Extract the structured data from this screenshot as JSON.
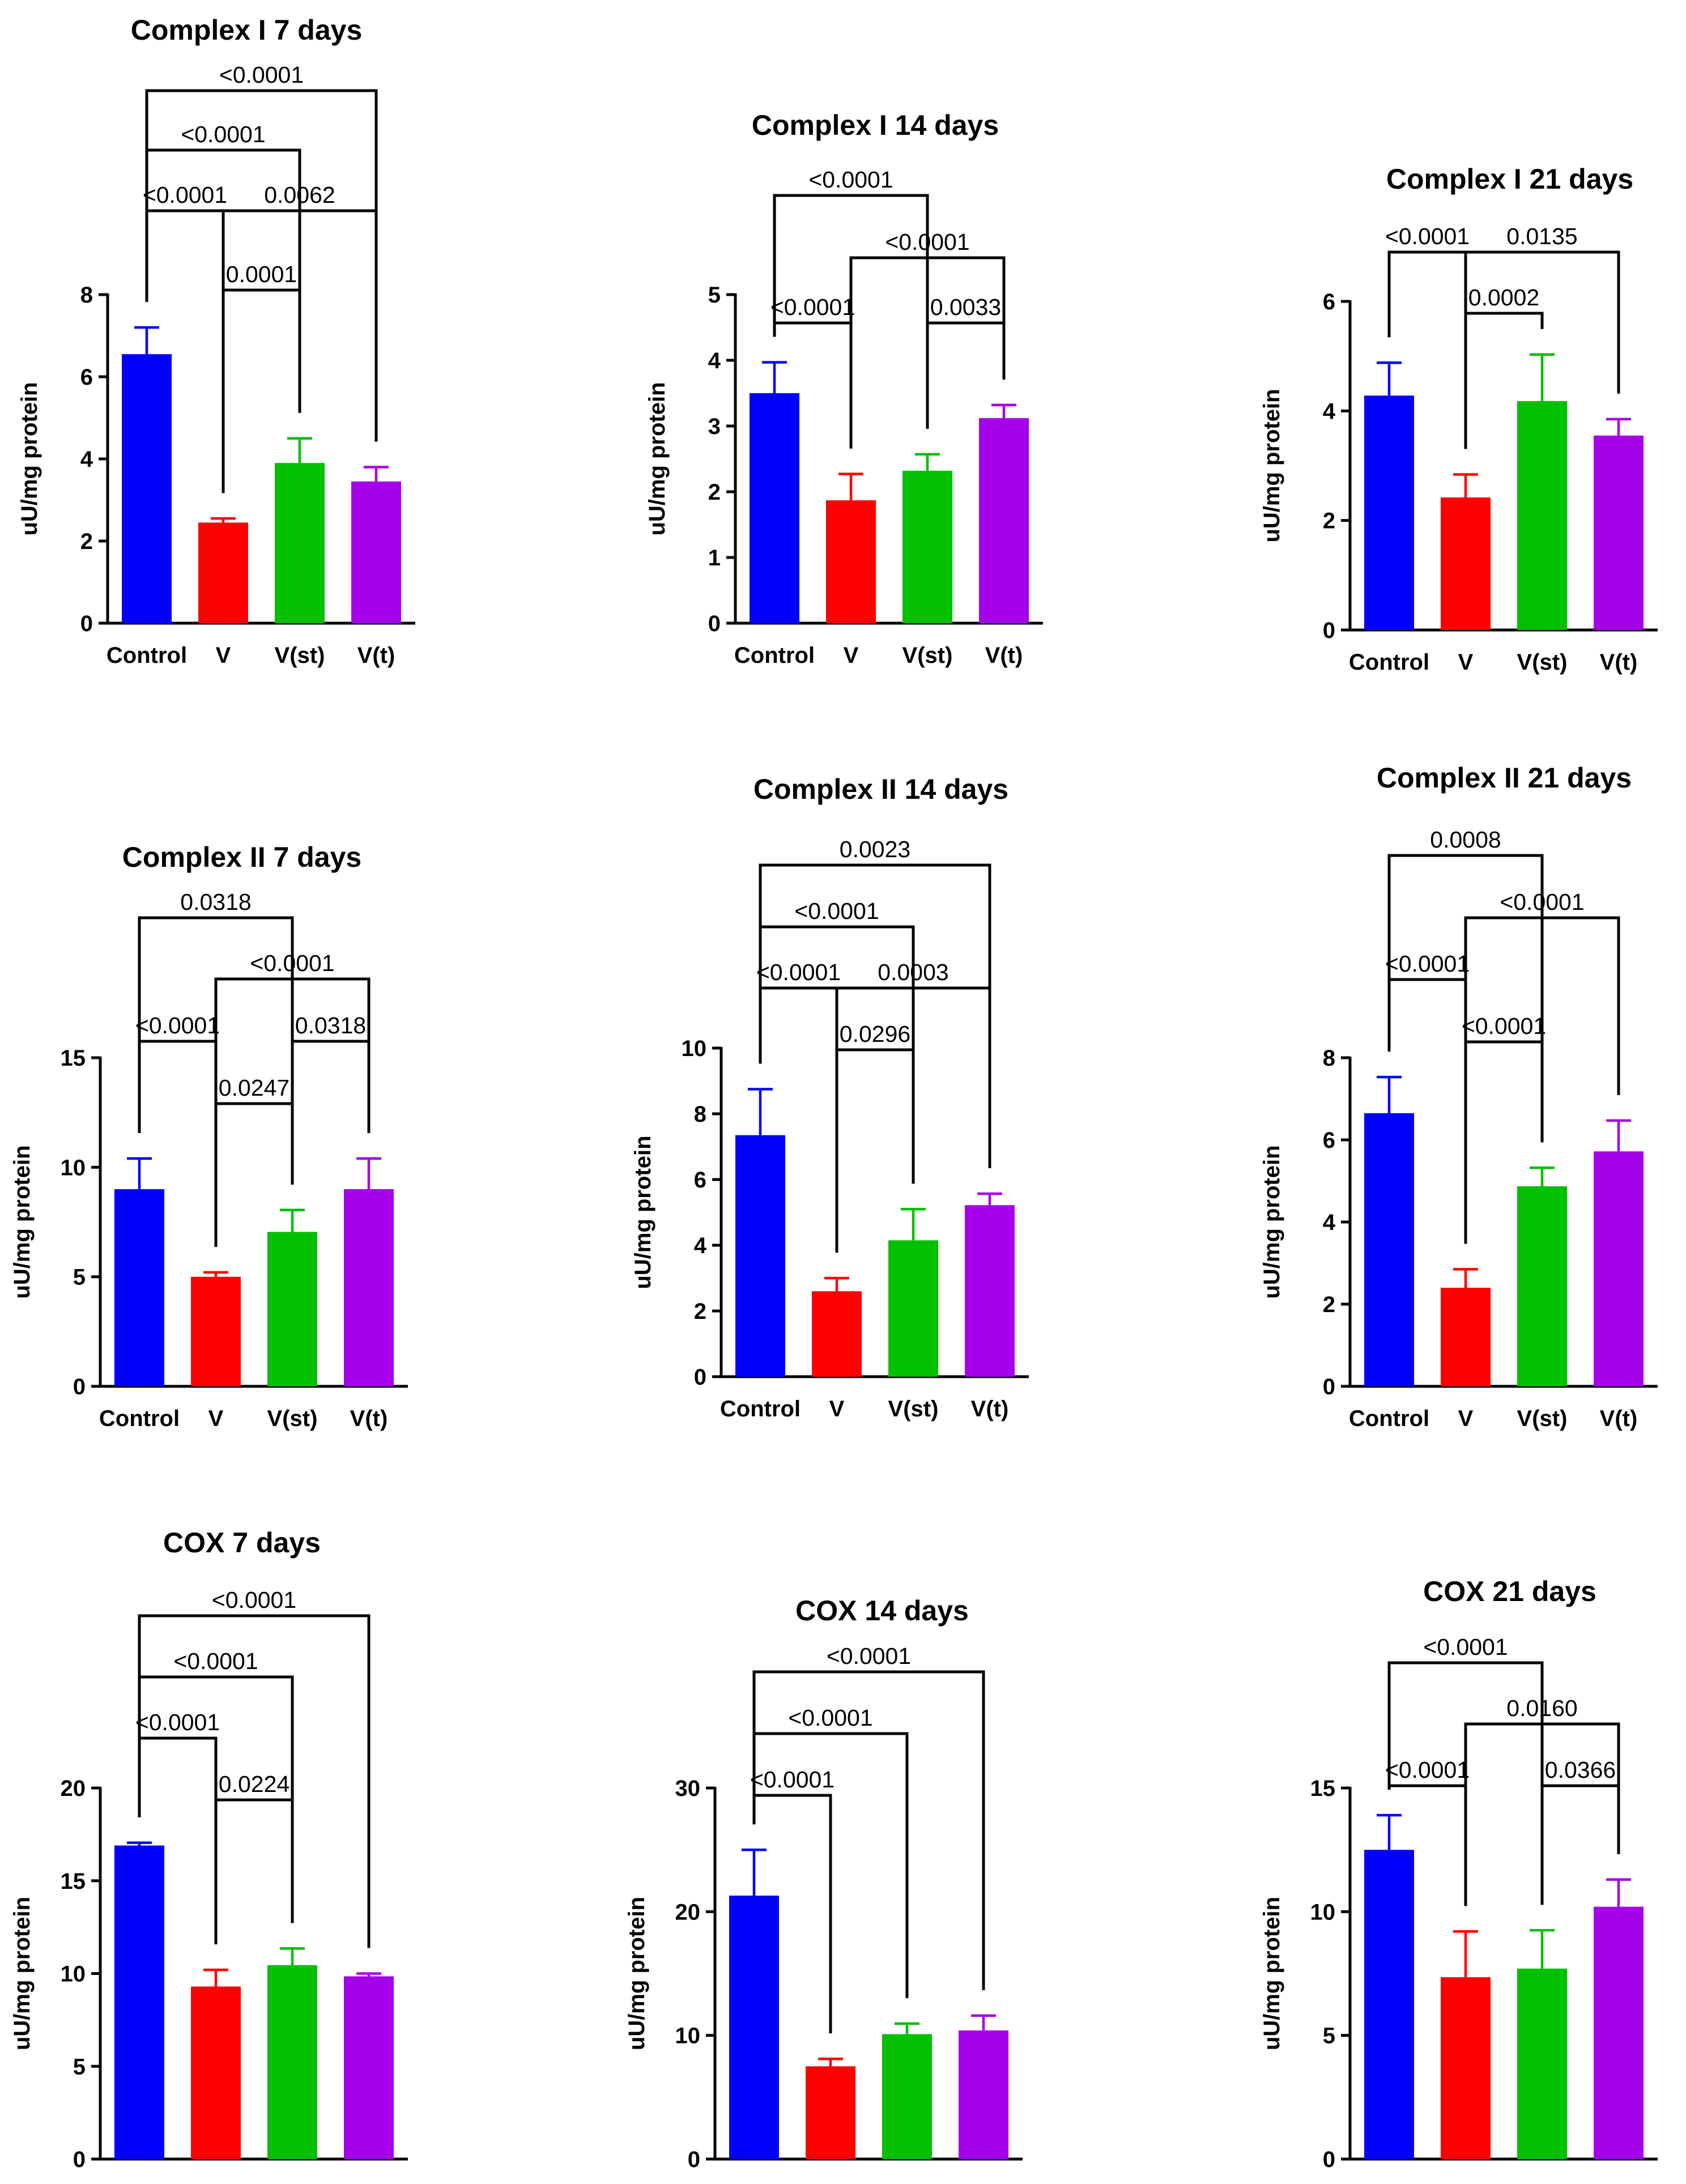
{
  "colors": {
    "Control": "#0000ff",
    "V": "#ff0000",
    "V(st)": "#00c000",
    "V(t)": "#a600ea"
  },
  "chart_data": [
    {
      "id": "c1i7",
      "type": "bar",
      "title": "Complex I 7 days",
      "ylabel": "uU/mg protein",
      "categories": [
        "Control",
        "V",
        "V(st)",
        "V(t)"
      ],
      "values": [
        6.55,
        2.45,
        3.9,
        3.45
      ],
      "errors": [
        0.65,
        0.1,
        0.6,
        0.35
      ],
      "ylim": [
        0,
        8
      ],
      "yticks": [
        0,
        2,
        4,
        6,
        8
      ],
      "comparisons": [
        {
          "a": 0,
          "b": 3,
          "p": "<0.0001"
        },
        {
          "a": 0,
          "b": 2,
          "p": "<0.0001"
        },
        {
          "a": 0,
          "b": 1,
          "p": "<0.0001"
        },
        {
          "a": 1,
          "b": 3,
          "p": "0.0062"
        },
        {
          "a": 1,
          "b": 2,
          "p": "0.0001"
        }
      ]
    },
    {
      "id": "c1i14",
      "type": "bar",
      "title": "Complex I 14 days",
      "ylabel": "uU/mg protein",
      "categories": [
        "Control",
        "V",
        "V(st)",
        "V(t)"
      ],
      "values": [
        3.5,
        1.87,
        2.32,
        3.12
      ],
      "errors": [
        0.47,
        0.4,
        0.25,
        0.2
      ],
      "ylim": [
        0,
        5
      ],
      "yticks": [
        0,
        1,
        2,
        3,
        4,
        5
      ],
      "comparisons": [
        {
          "a": 0,
          "b": 2,
          "p": "<0.0001"
        },
        {
          "a": 1,
          "b": 3,
          "p": "<0.0001"
        },
        {
          "a": 0,
          "b": 1,
          "p": "<0.0001"
        },
        {
          "a": 2,
          "b": 3,
          "p": "0.0033"
        }
      ]
    },
    {
      "id": "c1i21",
      "type": "bar",
      "title": "Complex I 21 days",
      "ylabel": "uU/mg protein",
      "categories": [
        "Control",
        "V",
        "V(st)",
        "V(t)"
      ],
      "values": [
        4.28,
        2.42,
        4.18,
        3.55
      ],
      "errors": [
        0.6,
        0.42,
        0.85,
        0.3
      ],
      "ylim": [
        0,
        6
      ],
      "yticks": [
        0,
        2,
        4,
        6
      ],
      "comparisons": [
        {
          "a": 0,
          "b": 1,
          "p": "<0.0001"
        },
        {
          "a": 1,
          "b": 3,
          "p": "0.0135"
        },
        {
          "a": 1,
          "b": 2,
          "p": "0.0002"
        }
      ]
    },
    {
      "id": "c2i7",
      "type": "bar",
      "title": "Complex II 7 days",
      "ylabel": "uU/mg protein",
      "categories": [
        "Control",
        "V",
        "V(st)",
        "V(t)"
      ],
      "values": [
        9.0,
        5.0,
        7.05,
        9.0
      ],
      "errors": [
        1.4,
        0.2,
        1.0,
        1.4
      ],
      "ylim": [
        0,
        15
      ],
      "yticks": [
        0,
        5,
        10,
        15
      ],
      "comparisons": [
        {
          "a": 0,
          "b": 2,
          "p": "0.0318"
        },
        {
          "a": 1,
          "b": 3,
          "p": "<0.0001"
        },
        {
          "a": 0,
          "b": 1,
          "p": "<0.0001"
        },
        {
          "a": 2,
          "b": 3,
          "p": "0.0318"
        },
        {
          "a": 1,
          "b": 2,
          "p": "0.0247"
        }
      ]
    },
    {
      "id": "c2i14",
      "type": "bar",
      "title": "Complex II 14 days",
      "ylabel": "uU/mg protein",
      "categories": [
        "Control",
        "V",
        "V(st)",
        "V(t)"
      ],
      "values": [
        7.35,
        2.6,
        4.15,
        5.22
      ],
      "errors": [
        1.4,
        0.4,
        0.95,
        0.35
      ],
      "ylim": [
        0,
        10
      ],
      "yticks": [
        0,
        2,
        4,
        6,
        8,
        10
      ],
      "comparisons": [
        {
          "a": 0,
          "b": 3,
          "p": "0.0023"
        },
        {
          "a": 0,
          "b": 2,
          "p": "<0.0001"
        },
        {
          "a": 0,
          "b": 1,
          "p": "<0.0001"
        },
        {
          "a": 1,
          "b": 3,
          "p": "0.0003"
        },
        {
          "a": 1,
          "b": 2,
          "p": "0.0296"
        }
      ]
    },
    {
      "id": "c2i21",
      "type": "bar",
      "title": "Complex II 21 days",
      "ylabel": "uU/mg protein",
      "categories": [
        "Control",
        "V",
        "V(st)",
        "V(t)"
      ],
      "values": [
        6.65,
        2.4,
        4.87,
        5.72
      ],
      "errors": [
        0.88,
        0.45,
        0.45,
        0.75
      ],
      "ylim": [
        0,
        8
      ],
      "yticks": [
        0,
        2,
        4,
        6,
        8
      ],
      "comparisons": [
        {
          "a": 0,
          "b": 2,
          "p": "0.0008"
        },
        {
          "a": 1,
          "b": 3,
          "p": "<0.0001"
        },
        {
          "a": 0,
          "b": 1,
          "p": "<0.0001"
        },
        {
          "a": 1,
          "b": 2,
          "p": "<0.0001"
        }
      ]
    },
    {
      "id": "cox7",
      "type": "bar",
      "title": "COX 7 days",
      "ylabel": "uU/mg protein",
      "categories": [
        "Control",
        "V",
        "V(st)",
        "V(t)"
      ],
      "values": [
        16.9,
        9.3,
        10.45,
        9.85
      ],
      "errors": [
        0.15,
        0.9,
        0.9,
        0.15
      ],
      "ylim": [
        0,
        20
      ],
      "yticks": [
        0,
        5,
        10,
        15,
        20
      ],
      "comparisons": [
        {
          "a": 0,
          "b": 3,
          "p": "<0.0001"
        },
        {
          "a": 0,
          "b": 2,
          "p": "<0.0001"
        },
        {
          "a": 0,
          "b": 1,
          "p": "<0.0001"
        },
        {
          "a": 1,
          "b": 2,
          "p": "0.0224"
        }
      ]
    },
    {
      "id": "cox14",
      "type": "bar",
      "title": "COX 14 days",
      "ylabel": "uU/mg protein",
      "categories": [
        "Control",
        "V",
        "V(st)",
        "V(t)"
      ],
      "values": [
        21.3,
        7.5,
        10.1,
        10.4
      ],
      "errors": [
        3.7,
        0.6,
        0.85,
        1.2
      ],
      "ylim": [
        0,
        30
      ],
      "yticks": [
        0,
        10,
        20,
        30
      ],
      "comparisons": [
        {
          "a": 0,
          "b": 3,
          "p": "<0.0001"
        },
        {
          "a": 0,
          "b": 2,
          "p": "<0.0001"
        },
        {
          "a": 0,
          "b": 1,
          "p": "<0.0001"
        }
      ]
    },
    {
      "id": "cox21",
      "type": "bar",
      "title": "COX 21 days",
      "ylabel": "uU/mg protein",
      "categories": [
        "Control",
        "V",
        "V(st)",
        "V(t)"
      ],
      "values": [
        12.5,
        7.35,
        7.7,
        10.2
      ],
      "errors": [
        1.4,
        1.85,
        1.55,
        1.1
      ],
      "ylim": [
        0,
        15
      ],
      "yticks": [
        0,
        5,
        10,
        15
      ],
      "comparisons": [
        {
          "a": 0,
          "b": 2,
          "p": "<0.0001"
        },
        {
          "a": 1,
          "b": 3,
          "p": "0.0160"
        },
        {
          "a": 0,
          "b": 1,
          "p": "<0.0001"
        },
        {
          "a": 2,
          "b": 3,
          "p": "0.0366"
        }
      ]
    }
  ]
}
